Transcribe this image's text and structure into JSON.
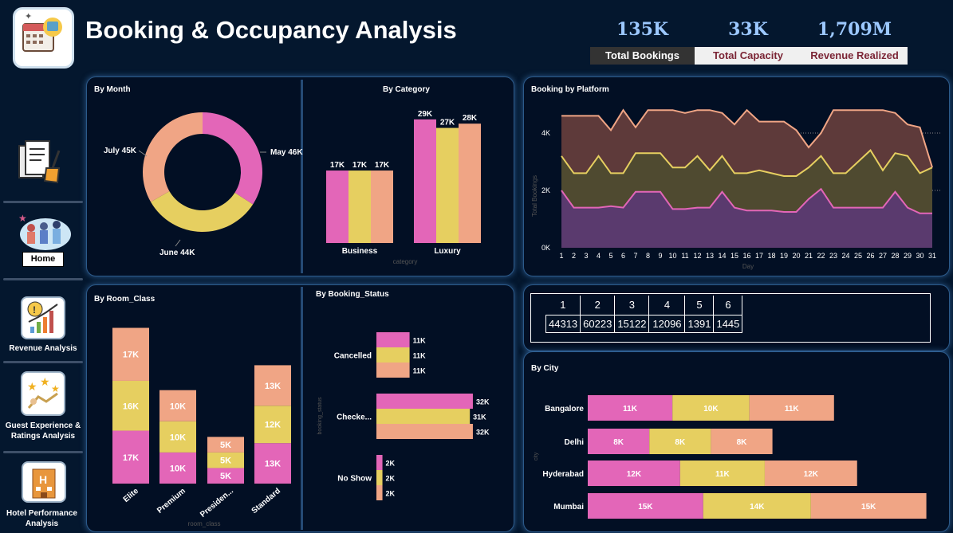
{
  "header": {
    "title": "Booking & Occupancy Analysis"
  },
  "kpis": [
    {
      "value": "135K",
      "label": "Total Bookings"
    },
    {
      "value": "33K",
      "label": "Total Capacity"
    },
    {
      "value": "1,709M",
      "label": "Revenue Realized"
    }
  ],
  "sidebar": {
    "items": [
      {
        "label": "",
        "icon": "report-brush-icon"
      },
      {
        "label": "Home",
        "icon": "people-home-icon"
      },
      {
        "label": "Revenue Analysis",
        "icon": "revenue-chart-icon"
      },
      {
        "label": "Guest Experience & Ratings Analysis",
        "icon": "ratings-icon"
      },
      {
        "label": "Hotel Performance Analysis",
        "icon": "hotel-icon"
      }
    ]
  },
  "colors": {
    "pink": "#e366b8",
    "yellow": "#e6cf60",
    "peach": "#f0a585",
    "bg": "#04172e"
  },
  "chart_data": [
    {
      "id": "by_month",
      "type": "pie",
      "title": "By Month",
      "labels": [
        "May",
        "June",
        "July"
      ],
      "values": [
        46,
        44,
        45
      ],
      "data_labels": [
        "May 46K",
        "June 44K",
        "July 45K"
      ]
    },
    {
      "id": "by_category",
      "type": "bar",
      "title": "By Category",
      "categories": [
        "Business",
        "Luxury"
      ],
      "xlabel": "category",
      "series": [
        {
          "name": "s1",
          "values": [
            17,
            29
          ],
          "labels": [
            "17K",
            "29K"
          ]
        },
        {
          "name": "s2",
          "values": [
            17,
            27
          ],
          "labels": [
            "17K",
            "27K"
          ]
        },
        {
          "name": "s3",
          "values": [
            17,
            28
          ],
          "labels": [
            "17K",
            "28K"
          ]
        }
      ]
    },
    {
      "id": "by_platform",
      "type": "area",
      "title": "Booking by Platform",
      "xlabel": "Day",
      "ylabel": "Total Bookings",
      "x": [
        1,
        2,
        3,
        4,
        5,
        6,
        7,
        8,
        9,
        10,
        11,
        12,
        13,
        14,
        15,
        16,
        17,
        18,
        19,
        20,
        21,
        22,
        23,
        24,
        25,
        26,
        27,
        28,
        29,
        30,
        31
      ],
      "yticks": [
        "0K",
        "2K",
        "4K"
      ],
      "ylim": [
        0,
        4800
      ],
      "series": [
        {
          "name": "low",
          "values": [
            2000,
            1400,
            1400,
            1400,
            1450,
            1400,
            1950,
            1950,
            1950,
            1350,
            1350,
            1400,
            1400,
            1950,
            1400,
            1300,
            1300,
            1300,
            1250,
            1250,
            1700,
            2050,
            1400,
            1400,
            1400,
            1400,
            1400,
            1950,
            1400,
            1200,
            1200
          ]
        },
        {
          "name": "mid",
          "values": [
            3200,
            2600,
            2600,
            3200,
            2600,
            2600,
            3300,
            3300,
            3300,
            2800,
            2800,
            3200,
            2700,
            3200,
            2600,
            2600,
            2700,
            2600,
            2500,
            2500,
            2800,
            3200,
            2600,
            2600,
            3000,
            3400,
            2700,
            3300,
            3200,
            2600,
            2800
          ]
        },
        {
          "name": "high",
          "values": [
            4600,
            4600,
            4600,
            4600,
            4100,
            4800,
            4200,
            4800,
            4800,
            4800,
            4700,
            4800,
            4800,
            4700,
            4300,
            4800,
            4400,
            4400,
            4400,
            4100,
            3500,
            4000,
            4800,
            4800,
            4800,
            4800,
            4800,
            4700,
            4300,
            4200,
            2800
          ]
        }
      ]
    },
    {
      "id": "by_room_class",
      "type": "bar",
      "title": "By Room_Class",
      "xlabel": "room_class",
      "categories": [
        "Elite",
        "Premium",
        "Presiden...",
        "Standard"
      ],
      "series": [
        {
          "name": "s1",
          "values": [
            17,
            10,
            5,
            13
          ],
          "labels": [
            "17K",
            "10K",
            "5K",
            "13K"
          ]
        },
        {
          "name": "s2",
          "values": [
            16,
            10,
            5,
            12
          ],
          "labels": [
            "16K",
            "10K",
            "5K",
            "12K"
          ]
        },
        {
          "name": "s3",
          "values": [
            17,
            10,
            5,
            13
          ],
          "labels": [
            "17K",
            "10K",
            "5K",
            "13K"
          ]
        }
      ]
    },
    {
      "id": "by_booking_status",
      "type": "bar",
      "title": "By Booking_Status",
      "ylabel": "booking_status",
      "categories": [
        "Cancelled",
        "Checke...",
        "No Show"
      ],
      "series": [
        {
          "name": "s1",
          "values": [
            11,
            32,
            2
          ],
          "labels": [
            "11K",
            "32K",
            "2K"
          ]
        },
        {
          "name": "s2",
          "values": [
            11,
            31,
            2
          ],
          "labels": [
            "11K",
            "31K",
            "2K"
          ]
        },
        {
          "name": "s3",
          "values": [
            11,
            32,
            2
          ],
          "labels": [
            "11K",
            "32K",
            "2K"
          ]
        }
      ]
    },
    {
      "id": "booking_table",
      "type": "table",
      "headers": [
        "1",
        "2",
        "3",
        "4",
        "5",
        "6"
      ],
      "values": [
        "44313",
        "60223",
        "15122",
        "12096",
        "1391",
        "1445"
      ]
    },
    {
      "id": "by_city",
      "type": "bar",
      "title": "By City",
      "ylabel": "city",
      "categories": [
        "Bangalore",
        "Delhi",
        "Hyderabad",
        "Mumbai"
      ],
      "series": [
        {
          "name": "s1",
          "values": [
            11,
            8,
            12,
            15
          ],
          "labels": [
            "11K",
            "8K",
            "12K",
            "15K"
          ]
        },
        {
          "name": "s2",
          "values": [
            10,
            8,
            11,
            14
          ],
          "labels": [
            "10K",
            "8K",
            "11K",
            "14K"
          ]
        },
        {
          "name": "s3",
          "values": [
            11,
            8,
            12,
            15
          ],
          "labels": [
            "11K",
            "8K",
            "12K",
            "15K"
          ]
        }
      ]
    }
  ]
}
